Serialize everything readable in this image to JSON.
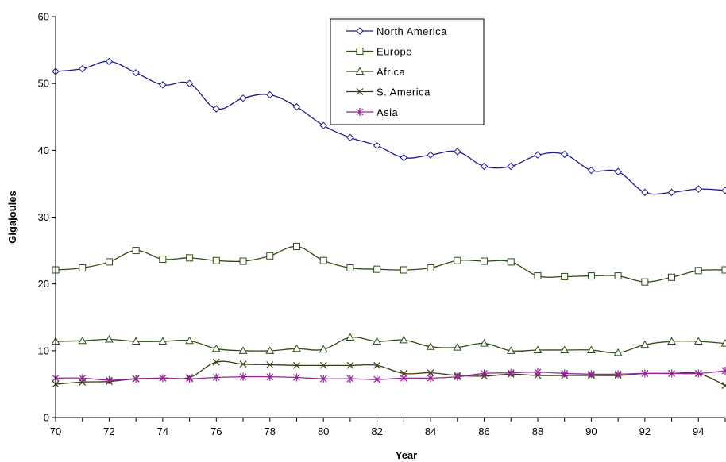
{
  "chart_data": {
    "type": "line",
    "title": "",
    "xlabel": "Year",
    "ylabel": "Gigajoules",
    "xlim": [
      70,
      95
    ],
    "ylim": [
      0,
      60
    ],
    "x_ticks": [
      "70",
      "72",
      "74",
      "76",
      "78",
      "80",
      "82",
      "84",
      "86",
      "88",
      "90",
      "92",
      "94"
    ],
    "y_ticks": [
      "0",
      "10",
      "20",
      "30",
      "40",
      "50",
      "60"
    ],
    "grid": false,
    "legend_position": "top-center",
    "x": [
      70,
      71,
      72,
      73,
      74,
      75,
      76,
      77,
      78,
      79,
      80,
      81,
      82,
      83,
      84,
      85,
      86,
      87,
      88,
      89,
      90,
      91,
      92,
      93,
      94,
      95
    ],
    "series": [
      {
        "name": "North America",
        "color": "#1a1a8c",
        "marker": "diamond",
        "values": [
          51.8,
          52.2,
          53.3,
          51.6,
          49.8,
          50.0,
          46.2,
          47.8,
          48.3,
          46.5,
          43.7,
          41.9,
          40.7,
          38.9,
          39.3,
          39.8,
          37.6,
          37.6,
          39.3,
          39.4,
          37.0,
          36.8,
          33.7,
          33.7,
          34.2,
          34.0
        ]
      },
      {
        "name": "Europe",
        "color": "#2e4d12",
        "marker": "square",
        "values": [
          22.1,
          22.4,
          23.3,
          25.0,
          23.7,
          23.9,
          23.5,
          23.4,
          24.2,
          25.6,
          23.5,
          22.4,
          22.2,
          22.1,
          22.4,
          23.5,
          23.4,
          23.3,
          21.2,
          21.1,
          21.2,
          21.2,
          20.3,
          21.0,
          22.0,
          22.1
        ]
      },
      {
        "name": "Africa",
        "color": "#2e4d12",
        "marker": "triangle",
        "values": [
          11.4,
          11.5,
          11.7,
          11.4,
          11.4,
          11.5,
          10.3,
          10.0,
          10.0,
          10.3,
          10.2,
          12.0,
          11.4,
          11.6,
          10.6,
          10.5,
          11.1,
          10.0,
          10.1,
          10.1,
          10.1,
          9.7,
          10.9,
          11.4,
          11.4,
          11.1
        ]
      },
      {
        "name": "S. America",
        "color": "#3a3a10",
        "marker": "x",
        "values": [
          5.0,
          5.3,
          5.4,
          5.8,
          5.9,
          6.0,
          8.3,
          8.0,
          7.9,
          7.8,
          7.8,
          7.8,
          7.8,
          6.6,
          6.7,
          6.3,
          6.2,
          6.5,
          6.3,
          6.3,
          6.3,
          6.3,
          6.6,
          6.6,
          6.6,
          4.8
        ]
      },
      {
        "name": "Asia",
        "color": "#99239b",
        "marker": "asterisk",
        "values": [
          5.9,
          5.9,
          5.6,
          5.8,
          5.9,
          5.8,
          6.0,
          6.1,
          6.1,
          6.0,
          5.8,
          5.8,
          5.7,
          5.9,
          5.9,
          6.1,
          6.6,
          6.7,
          6.8,
          6.6,
          6.5,
          6.5,
          6.6,
          6.6,
          6.6,
          7.0
        ]
      }
    ]
  }
}
